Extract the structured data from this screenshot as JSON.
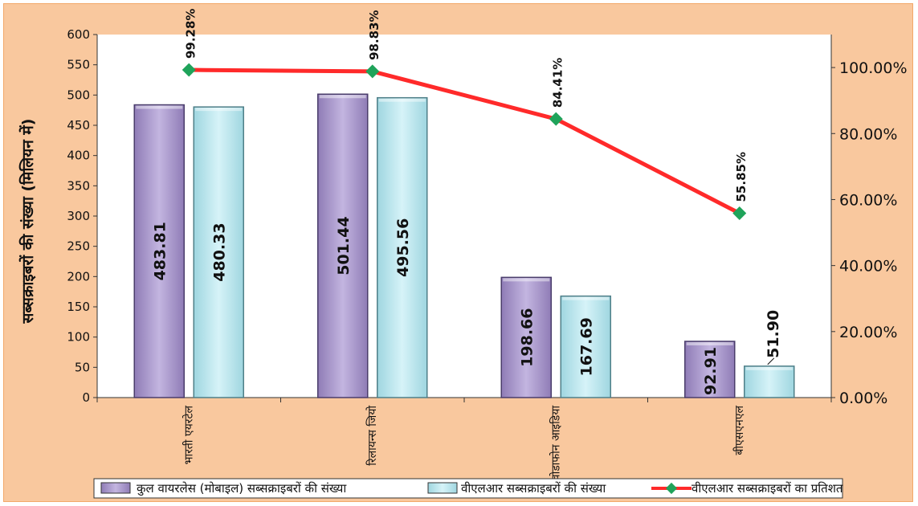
{
  "chart_data": {
    "type": "bar",
    "categories": [
      "भारती एयरटेल",
      "रिलायन्स जियो",
      "वोडाफोन आइडिया",
      "बीएसएनएल"
    ],
    "series": [
      {
        "name": "कुल वायरलेस (मोबाइल) सब्सक्राइबरों की संख्या",
        "kind": "bar",
        "axis": "left",
        "color": "#b4a4d4",
        "values": [
          483.81,
          501.44,
          198.66,
          92.91
        ],
        "labels": [
          "483.81",
          "501.44",
          "198.66",
          "92.91"
        ]
      },
      {
        "name": "वीएलआर सब्सक्राइबरों की संख्या",
        "kind": "bar",
        "axis": "left",
        "color": "#c8ecf2",
        "values": [
          480.33,
          495.56,
          167.69,
          51.9
        ],
        "labels": [
          "480.33",
          "495.56",
          "167.69",
          "51.90"
        ]
      },
      {
        "name": "वीएलआर सब्सक्राइबरों का प्रतिशत",
        "kind": "line",
        "axis": "right",
        "color": "#ff2a2a",
        "marker_color": "#1fa35a",
        "values": [
          99.28,
          98.83,
          84.41,
          55.85
        ],
        "labels": [
          "99.28%",
          "98.83%",
          "84.41%",
          "55.85%"
        ]
      }
    ],
    "ylabel": "सब्सक्राइबरों की संख्या (मिलियन में)",
    "ylim": [
      0,
      600
    ],
    "yticks": [
      "0",
      "50",
      "100",
      "150",
      "200",
      "250",
      "300",
      "350",
      "400",
      "450",
      "500",
      "550",
      "600"
    ],
    "y2lim": [
      0,
      110
    ],
    "y2ticks": [
      "0.00%",
      "20.00%",
      "40.00%",
      "60.00%",
      "80.00%",
      "100.00%"
    ],
    "legend": "bottom",
    "grid": false
  }
}
